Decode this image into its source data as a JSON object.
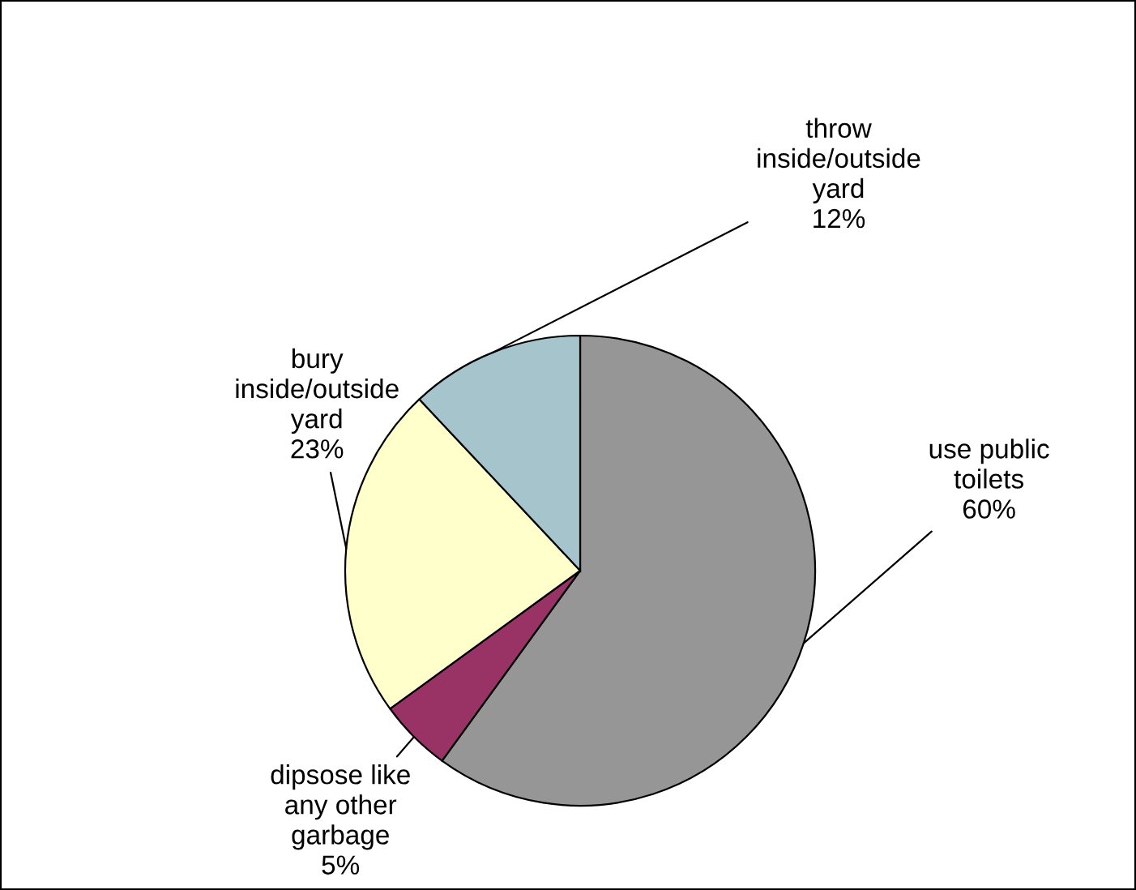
{
  "chart_data": {
    "type": "pie",
    "categories": [
      "use public toilets",
      "dipsose like any other garbage",
      "bury inside/outside yard",
      "throw inside/outside yard"
    ],
    "value_labels": [
      "60%",
      "5%",
      "23%",
      "12%"
    ],
    "values": [
      60,
      5,
      23,
      12
    ],
    "colors": [
      "#969696",
      "#993366",
      "#ffffcc",
      "#a6c4cc"
    ],
    "legend": false
  }
}
